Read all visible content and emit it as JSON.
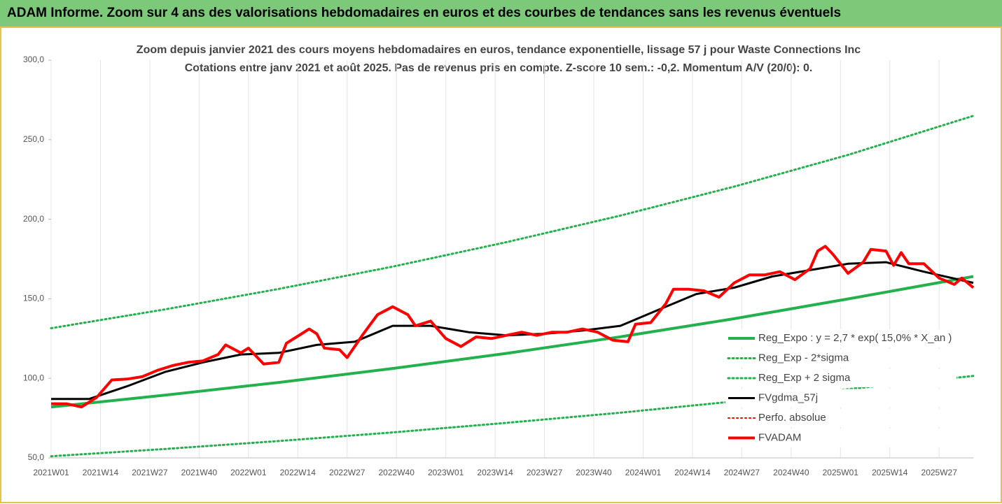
{
  "header": {
    "title": "ADAM Informe. Zoom sur 4 ans des valorisations hebdomadaires en euros et des courbes de tendances sans les revenus éventuels"
  },
  "chart_data": {
    "type": "line",
    "title": "Zoom depuis janvier 2021 des cours moyens hebdomadaires en euros, tendance exponentielle, lissage 57 j pour Waste Connections Inc",
    "subtitle": "Cotations entre janv 2021 et août 2025.  Pas de revenus pris en compte. Z-score 10 sem.: -0,2. Momentum A/V (20/0): 0.",
    "xlim": [
      0,
      243
    ],
    "xticks": [
      {
        "value": 0,
        "label": "2021W01"
      },
      {
        "value": 13,
        "label": "2021W14"
      },
      {
        "value": 26,
        "label": "2021W27"
      },
      {
        "value": 39,
        "label": "2021W40"
      },
      {
        "value": 52,
        "label": "2022W01"
      },
      {
        "value": 65,
        "label": "2022W14"
      },
      {
        "value": 78,
        "label": "2022W27"
      },
      {
        "value": 91,
        "label": "2022W40"
      },
      {
        "value": 104,
        "label": "2023W01"
      },
      {
        "value": 117,
        "label": "2023W14"
      },
      {
        "value": 130,
        "label": "2023W27"
      },
      {
        "value": 143,
        "label": "2023W40"
      },
      {
        "value": 156,
        "label": "2024W01"
      },
      {
        "value": 169,
        "label": "2024W14"
      },
      {
        "value": 182,
        "label": "2024W27"
      },
      {
        "value": 195,
        "label": "2024W40"
      },
      {
        "value": 208,
        "label": "2025W01"
      },
      {
        "value": 221,
        "label": "2025W14"
      },
      {
        "value": 234,
        "label": "2025W27"
      }
    ],
    "ylim": [
      50,
      300
    ],
    "yticks": [
      {
        "value": 50,
        "label": "50,0"
      },
      {
        "value": 100,
        "label": "100,0"
      },
      {
        "value": 150,
        "label": "150,0"
      },
      {
        "value": 200,
        "label": "200,0"
      },
      {
        "value": 250,
        "label": "250,0"
      },
      {
        "value": 300,
        "label": "300,0"
      }
    ],
    "grid": "x",
    "series": [
      {
        "name": "Reg_Expo : y = 2,7 * exp( 15,0% *  X_an )",
        "color": "#22b14c",
        "style": "solid",
        "width": 4,
        "x": [
          0,
          30,
          60,
          90,
          120,
          150,
          180,
          210,
          243
        ],
        "values": [
          82,
          89.4,
          97.4,
          106.2,
          115.7,
          126.1,
          137.5,
          149.9,
          164
        ]
      },
      {
        "name": "Reg_Exp - 2*sigma",
        "color": "#22b14c",
        "style": "dotted",
        "width": 3,
        "x": [
          0,
          30,
          60,
          90,
          120,
          150,
          180,
          210,
          243
        ],
        "values": [
          51,
          55.6,
          60.6,
          66.0,
          72.0,
          78.4,
          85.5,
          93.2,
          101.5
        ]
      },
      {
        "name": "Reg_Exp + 2 sigma",
        "color": "#22b14c",
        "style": "dotted",
        "width": 3,
        "x": [
          0,
          30,
          60,
          90,
          120,
          150,
          180,
          210,
          243
        ],
        "values": [
          131.5,
          143.3,
          156.2,
          170.2,
          185.6,
          202.3,
          220.5,
          240.4,
          265
        ]
      },
      {
        "name": "FVgdma_57j",
        "color": "#000000",
        "style": "solid",
        "width": 3,
        "x": [
          0,
          10,
          20,
          30,
          40,
          50,
          60,
          70,
          80,
          90,
          100,
          110,
          120,
          130,
          140,
          150,
          160,
          170,
          180,
          190,
          200,
          210,
          220,
          230,
          243
        ],
        "values": [
          87,
          87,
          95,
          104,
          110,
          115,
          116,
          121,
          123,
          133,
          133,
          129,
          127,
          128,
          130,
          133,
          143,
          153,
          157,
          164,
          168,
          172,
          173,
          167,
          160
        ]
      },
      {
        "name": "Perfo. absolue",
        "color": "#ff0000",
        "style": "dotted",
        "width": 2,
        "x": [],
        "values": []
      },
      {
        "name": "FVADAM",
        "color": "#ff0000",
        "style": "solid",
        "width": 4,
        "x": [
          0,
          4,
          8,
          12,
          16,
          20,
          24,
          28,
          32,
          36,
          40,
          44,
          46,
          50,
          52,
          56,
          60,
          62,
          66,
          68,
          70,
          72,
          76,
          78,
          82,
          86,
          90,
          94,
          96,
          100,
          104,
          108,
          112,
          116,
          120,
          124,
          128,
          132,
          136,
          140,
          144,
          148,
          152,
          154,
          158,
          162,
          164,
          168,
          172,
          176,
          180,
          184,
          188,
          192,
          196,
          200,
          202,
          204,
          206,
          210,
          214,
          216,
          220,
          222,
          224,
          226,
          230,
          234,
          238,
          240,
          243
        ],
        "values": [
          84,
          84,
          82,
          88,
          99,
          99.5,
          101,
          105,
          108,
          110,
          111,
          115,
          121,
          116,
          119,
          109,
          110,
          122,
          128,
          131,
          128,
          119,
          118,
          113,
          127,
          140,
          145,
          140,
          133,
          136,
          125,
          120,
          126,
          125,
          127,
          129,
          127,
          129,
          129,
          131,
          129,
          124,
          123,
          134,
          135,
          147,
          156,
          156,
          155,
          151,
          160,
          165,
          165,
          167,
          162,
          169,
          180,
          183,
          178,
          166,
          173,
          181,
          180,
          171,
          179,
          172,
          172,
          163,
          159,
          163,
          157
        ]
      }
    ]
  }
}
